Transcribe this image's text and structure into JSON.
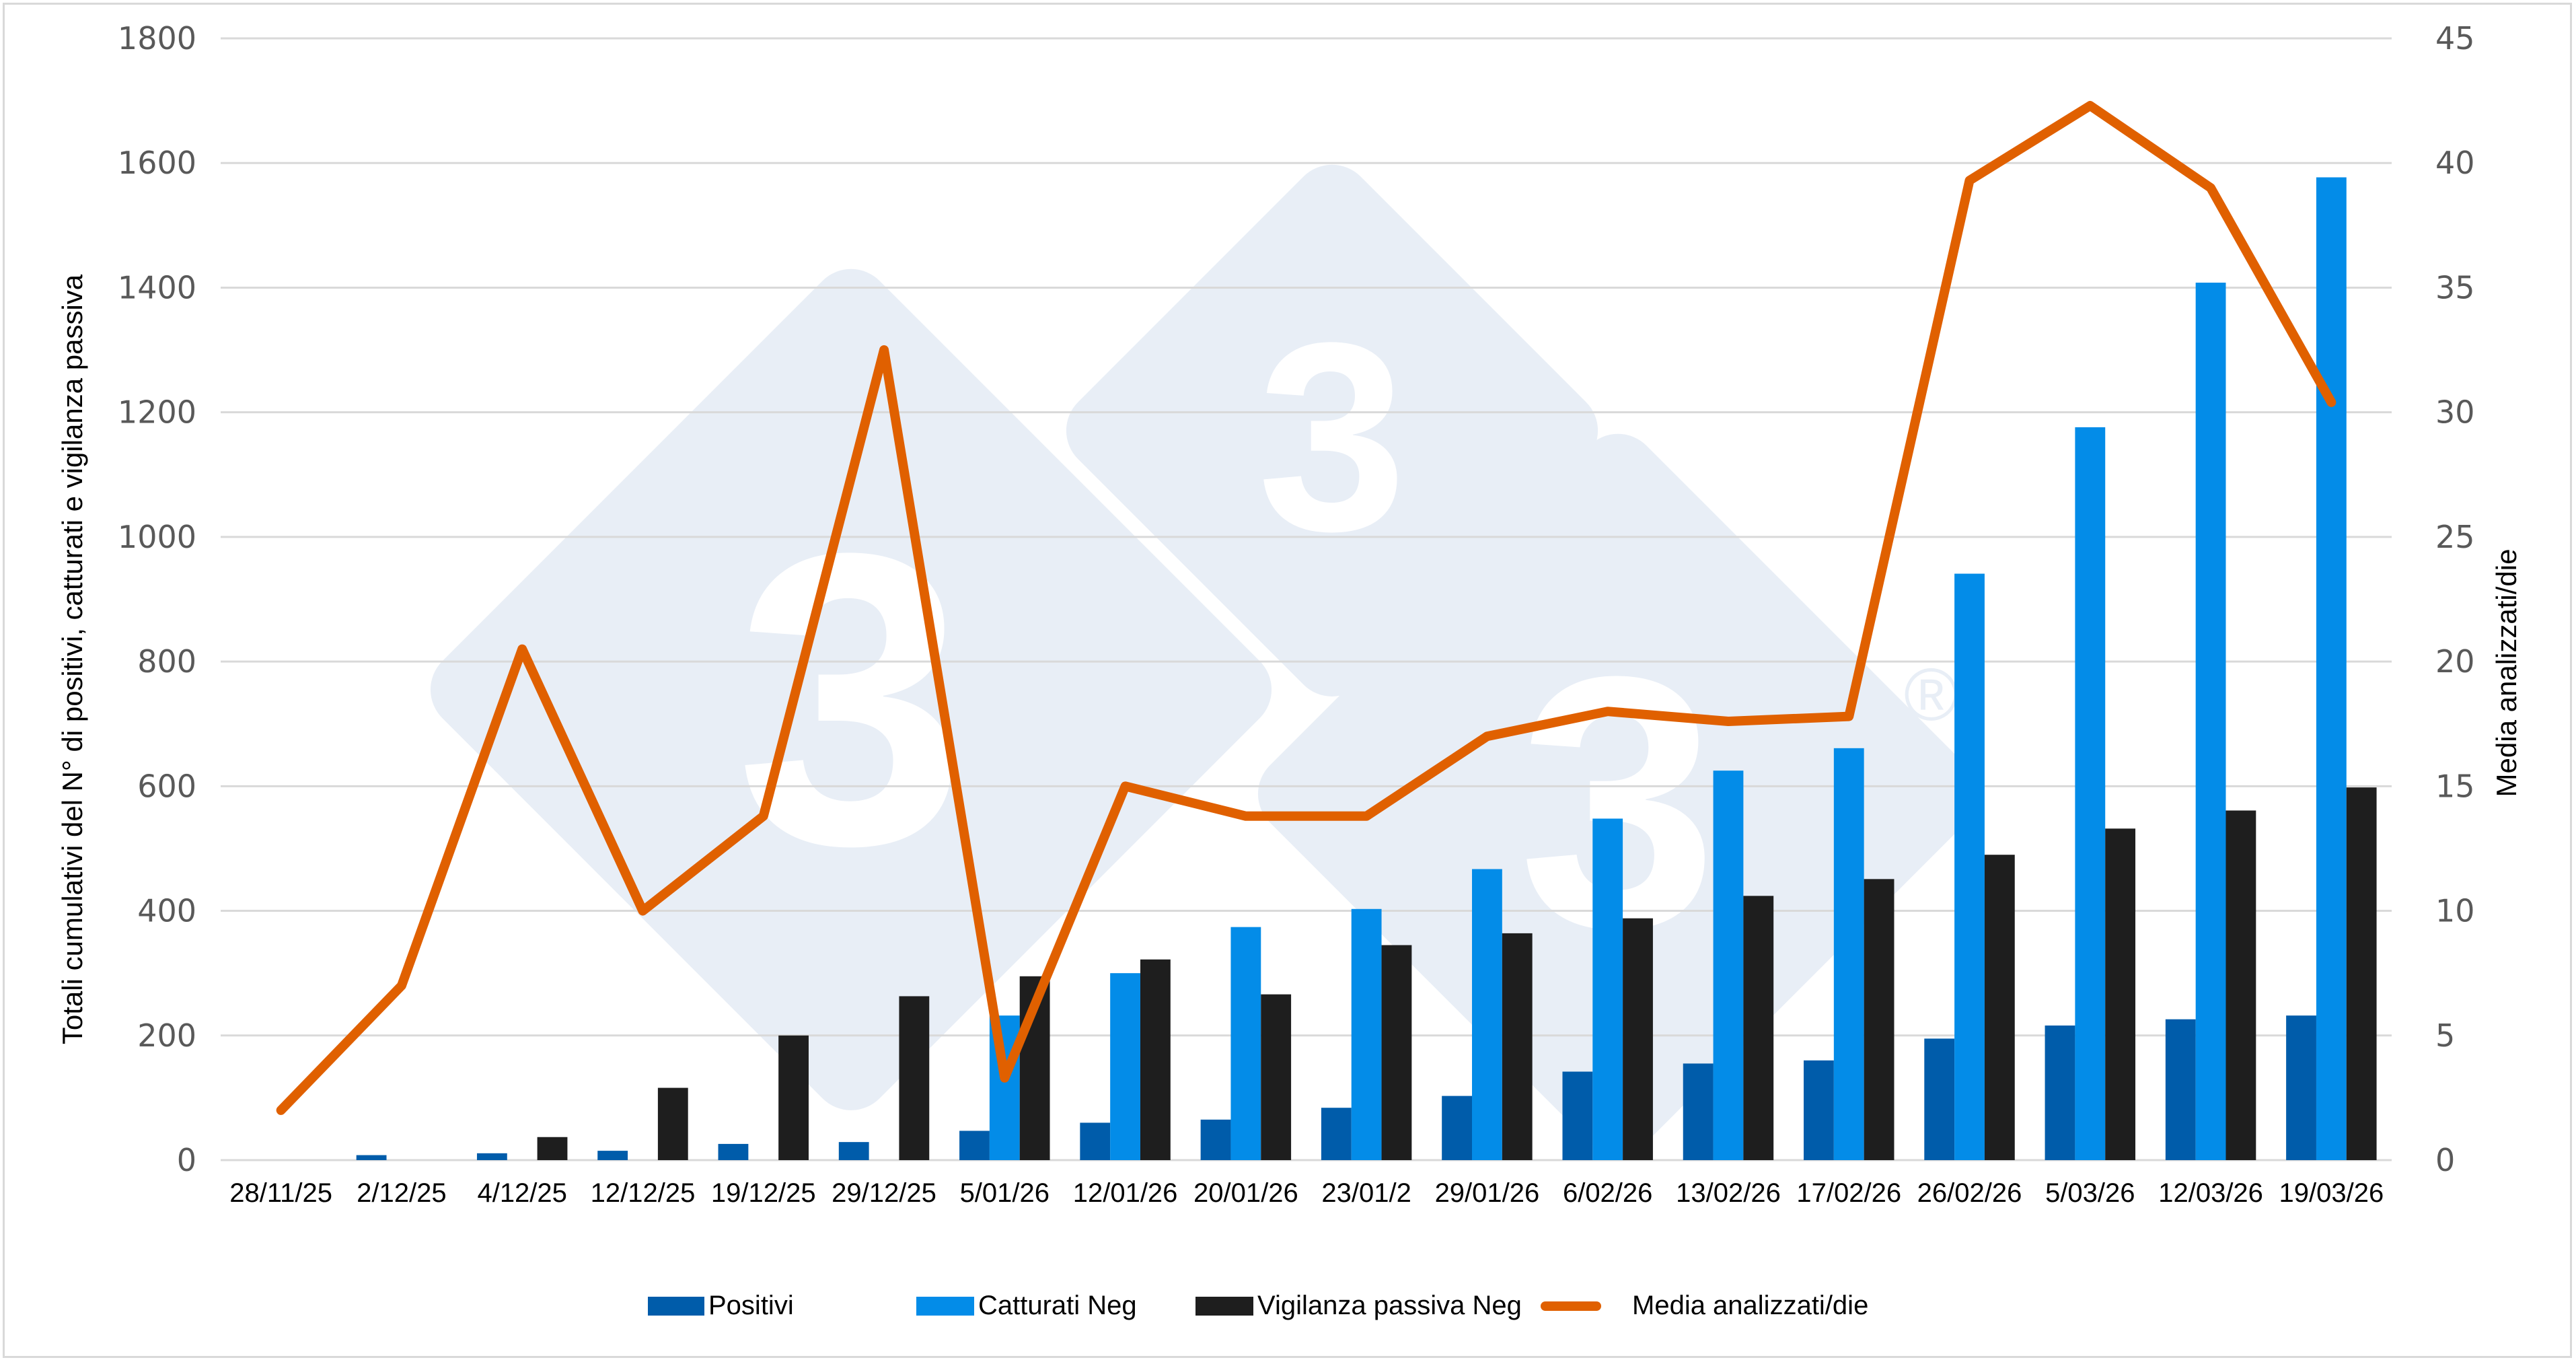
{
  "chart_data": {
    "type": "bar",
    "title": "",
    "categories": [
      "28/11/25",
      "2/12/25",
      "4/12/25",
      "12/12/25",
      "19/12/25",
      "29/12/25",
      "5/01/26",
      "12/01/26",
      "20/01/26",
      "23/01/2",
      "29/01/26",
      "6/02/26",
      "13/02/26",
      "17/02/26",
      "26/02/26",
      "5/03/26",
      "12/03/26",
      "19/03/26"
    ],
    "ylabel": "Totali cumulativi del N° di positivi, catturati e vigilanza passiva",
    "y2label": "Media analizzati/die",
    "xlabel": "",
    "ylim": [
      0,
      1800
    ],
    "y2lim": [
      0,
      45
    ],
    "yticks": [
      0,
      200,
      400,
      600,
      800,
      1000,
      1200,
      1400,
      1600,
      1800
    ],
    "y2ticks": [
      0,
      5,
      10,
      15,
      20,
      25,
      30,
      35,
      40,
      45
    ],
    "grid": true,
    "legend_position": "bottom",
    "series": [
      {
        "name": "Positivi",
        "type": "bar",
        "axis": "left",
        "color": "#005CAA",
        "values": [
          0,
          8,
          11,
          15,
          26,
          29,
          47,
          60,
          65,
          84,
          103,
          142,
          155,
          160,
          195,
          216,
          226,
          232
        ]
      },
      {
        "name": "Catturati Neg",
        "type": "bar",
        "axis": "left",
        "color": "#038CE8",
        "values": [
          0,
          0,
          0,
          0,
          0,
          0,
          232,
          300,
          374,
          403,
          467,
          548,
          625,
          661,
          941,
          1176,
          1408,
          1577
        ]
      },
      {
        "name": "Vigilanza passiva Neg",
        "type": "bar",
        "axis": "left",
        "color": "#1E1E1E",
        "values": [
          0,
          0,
          37,
          116,
          200,
          263,
          295,
          322,
          266,
          345,
          364,
          388,
          424,
          451,
          490,
          532,
          561,
          598
        ]
      },
      {
        "name": "Media analizzati/die",
        "type": "line",
        "axis": "right",
        "color": "#E06000",
        "values": [
          2,
          7,
          20.5,
          10,
          13.8,
          32.5,
          3.3,
          15,
          13.8,
          13.8,
          17,
          18,
          17.6,
          17.8,
          39.3,
          42.3,
          39,
          30.4
        ]
      }
    ]
  },
  "legend": {
    "items": [
      {
        "label": "Positivi",
        "color": "#005CAA"
      },
      {
        "label": "Catturati Neg",
        "color": "#038CE8"
      },
      {
        "label": "Vigilanza passiva Neg",
        "color": "#1E1E1E"
      },
      {
        "label": "Media analizzati/die",
        "color": "#E06000"
      }
    ]
  },
  "watermark": {
    "text": "3",
    "mark": "®"
  }
}
